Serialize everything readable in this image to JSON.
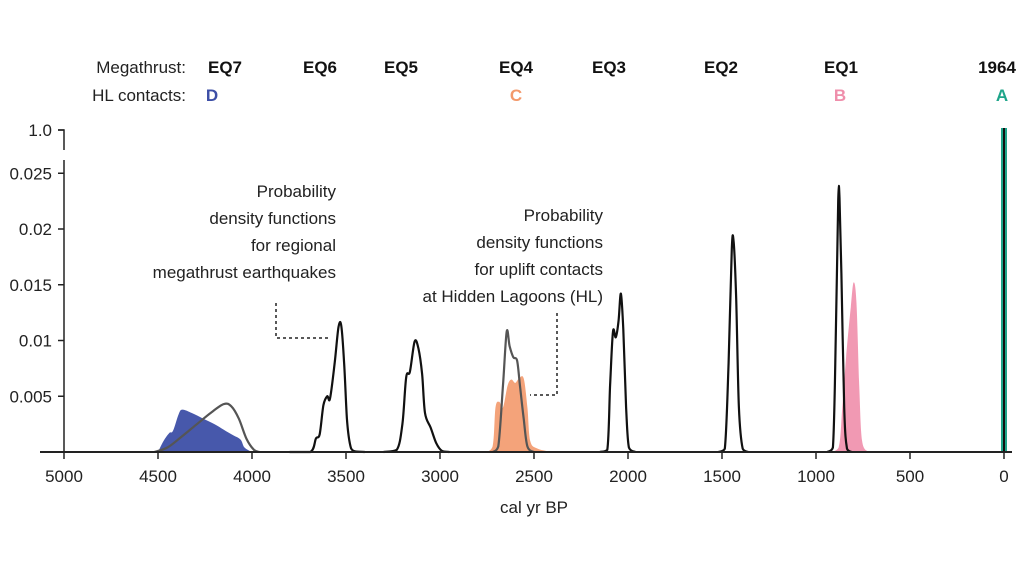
{
  "chart_data": {
    "type": "area",
    "xlabel": "cal yr BP",
    "ylabel": "",
    "xlim": [
      5000,
      0
    ],
    "x_reversed": true,
    "ylim": [
      0,
      0.027
    ],
    "y_break": true,
    "x_ticks": [
      "5000",
      "4500",
      "4000",
      "3500",
      "3000",
      "2500",
      "2000",
      "1500",
      "1000",
      "500",
      "0"
    ],
    "y_ticks": [
      "0.005",
      "0.01",
      "0.015",
      "0.02",
      "0.025",
      "1.0"
    ],
    "grid": false,
    "header": {
      "megathrust_label": "Megathrust:",
      "hl_label": "HL contacts:",
      "megathrust_events": [
        "EQ7",
        "EQ6",
        "EQ5",
        "EQ4",
        "EQ3",
        "EQ2",
        "EQ1",
        "1964"
      ],
      "hl_contacts": [
        {
          "label": "D",
          "color": "#3d4fa6"
        },
        {
          "label": "C",
          "color": "#f3996b"
        },
        {
          "label": "B",
          "color": "#ef8eab"
        },
        {
          "label": "A",
          "color": "#1fa58a"
        }
      ]
    },
    "annotations": [
      {
        "lines": [
          "Probability",
          "density functions",
          "for regional",
          "megathrust earthquakes"
        ]
      },
      {
        "lines": [
          "Probability",
          "density functions",
          "for uplift contacts",
          "at Hidden Lagoons (HL)"
        ]
      }
    ],
    "series": [
      {
        "id": "EQ7",
        "kind": "line",
        "color": "#555555",
        "points": [
          [
            4520,
            0
          ],
          [
            4450,
            0.0004
          ],
          [
            4380,
            0.0013
          ],
          [
            4300,
            0.0024
          ],
          [
            4220,
            0.0035
          ],
          [
            4150,
            0.0043
          ],
          [
            4110,
            0.0041
          ],
          [
            4070,
            0.003
          ],
          [
            4030,
            0.0012
          ],
          [
            3990,
            0.0002
          ],
          [
            3960,
            0
          ]
        ]
      },
      {
        "id": "D",
        "kind": "fill",
        "color": "#3d4fa6",
        "points": [
          [
            4500,
            0
          ],
          [
            4470,
            0.001
          ],
          [
            4440,
            0.0017
          ],
          [
            4420,
            0.0019
          ],
          [
            4390,
            0.0034
          ],
          [
            4370,
            0.0038
          ],
          [
            4320,
            0.0035
          ],
          [
            4260,
            0.003
          ],
          [
            4200,
            0.0025
          ],
          [
            4150,
            0.002
          ],
          [
            4100,
            0.0015
          ],
          [
            4060,
            0.0011
          ],
          [
            4040,
            0.0004
          ],
          [
            4000,
            0
          ]
        ]
      },
      {
        "id": "EQ6",
        "kind": "line",
        "color": "#111111",
        "points": [
          [
            3800,
            0
          ],
          [
            3690,
            0
          ],
          [
            3660,
            0.0012
          ],
          [
            3640,
            0.0016
          ],
          [
            3620,
            0.0042
          ],
          [
            3600,
            0.005
          ],
          [
            3585,
            0.0048
          ],
          [
            3560,
            0.008
          ],
          [
            3540,
            0.0112
          ],
          [
            3525,
            0.0113
          ],
          [
            3510,
            0.008
          ],
          [
            3495,
            0.003
          ],
          [
            3480,
            0.0008
          ],
          [
            3460,
            0.0001
          ],
          [
            3400,
            0
          ]
        ]
      },
      {
        "id": "EQ5",
        "kind": "line",
        "color": "#111111",
        "points": [
          [
            3300,
            0
          ],
          [
            3230,
            0.0002
          ],
          [
            3200,
            0.0025
          ],
          [
            3180,
            0.0067
          ],
          [
            3160,
            0.0072
          ],
          [
            3135,
            0.0099
          ],
          [
            3115,
            0.0093
          ],
          [
            3095,
            0.007
          ],
          [
            3080,
            0.0035
          ],
          [
            3050,
            0.0022
          ],
          [
            3020,
            0.0008
          ],
          [
            2990,
            0.0001
          ],
          [
            2950,
            0
          ]
        ]
      },
      {
        "id": "C",
        "kind": "fill",
        "color": "#f3996b",
        "points": [
          [
            2760,
            0
          ],
          [
            2720,
            0.0005
          ],
          [
            2705,
            0.004
          ],
          [
            2685,
            0.0045
          ],
          [
            2665,
            0.004
          ],
          [
            2640,
            0.006
          ],
          [
            2620,
            0.0065
          ],
          [
            2600,
            0.0062
          ],
          [
            2580,
            0.0066
          ],
          [
            2555,
            0.0066
          ],
          [
            2535,
            0.004
          ],
          [
            2520,
            0.001
          ],
          [
            2480,
            0.0003
          ],
          [
            2400,
            0
          ]
        ]
      },
      {
        "id": "EQ4",
        "kind": "line",
        "color": "#555555",
        "points": [
          [
            2720,
            0
          ],
          [
            2690,
            0.0005
          ],
          [
            2665,
            0.006
          ],
          [
            2645,
            0.0108
          ],
          [
            2630,
            0.0095
          ],
          [
            2610,
            0.0085
          ],
          [
            2590,
            0.0082
          ],
          [
            2575,
            0.006
          ],
          [
            2555,
            0.003
          ],
          [
            2535,
            0.0005
          ],
          [
            2500,
            0
          ]
        ]
      },
      {
        "id": "EQ3",
        "kind": "line",
        "color": "#111111",
        "points": [
          [
            2150,
            0
          ],
          [
            2110,
            0.0002
          ],
          [
            2095,
            0.006
          ],
          [
            2080,
            0.0108
          ],
          [
            2065,
            0.0103
          ],
          [
            2050,
            0.0118
          ],
          [
            2038,
            0.0142
          ],
          [
            2025,
            0.011
          ],
          [
            2010,
            0.004
          ],
          [
            1995,
            0.0004
          ],
          [
            1960,
            0
          ]
        ]
      },
      {
        "id": "EQ2",
        "kind": "line",
        "color": "#111111",
        "points": [
          [
            1520,
            0
          ],
          [
            1485,
            0.0003
          ],
          [
            1465,
            0.008
          ],
          [
            1448,
            0.0182
          ],
          [
            1438,
            0.0188
          ],
          [
            1425,
            0.014
          ],
          [
            1410,
            0.004
          ],
          [
            1390,
            0.0003
          ],
          [
            1360,
            0
          ]
        ]
      },
      {
        "id": "B",
        "kind": "fill",
        "color": "#ef8eab",
        "points": [
          [
            930,
            0
          ],
          [
            880,
            0.0004
          ],
          [
            860,
            0.004
          ],
          [
            840,
            0.0085
          ],
          [
            815,
            0.013
          ],
          [
            800,
            0.0152
          ],
          [
            785,
            0.0135
          ],
          [
            770,
            0.006
          ],
          [
            755,
            0.001
          ],
          [
            720,
            0
          ]
        ]
      },
      {
        "id": "EQ1",
        "kind": "line",
        "color": "#111111",
        "points": [
          [
            940,
            0
          ],
          [
            910,
            0.0004
          ],
          [
            895,
            0.01
          ],
          [
            882,
            0.0225
          ],
          [
            875,
            0.0228
          ],
          [
            865,
            0.016
          ],
          [
            850,
            0.004
          ],
          [
            835,
            0.0003
          ],
          [
            810,
            0
          ]
        ]
      }
    ],
    "event_1964": {
      "x": 0,
      "color": "#1fa58a"
    }
  }
}
